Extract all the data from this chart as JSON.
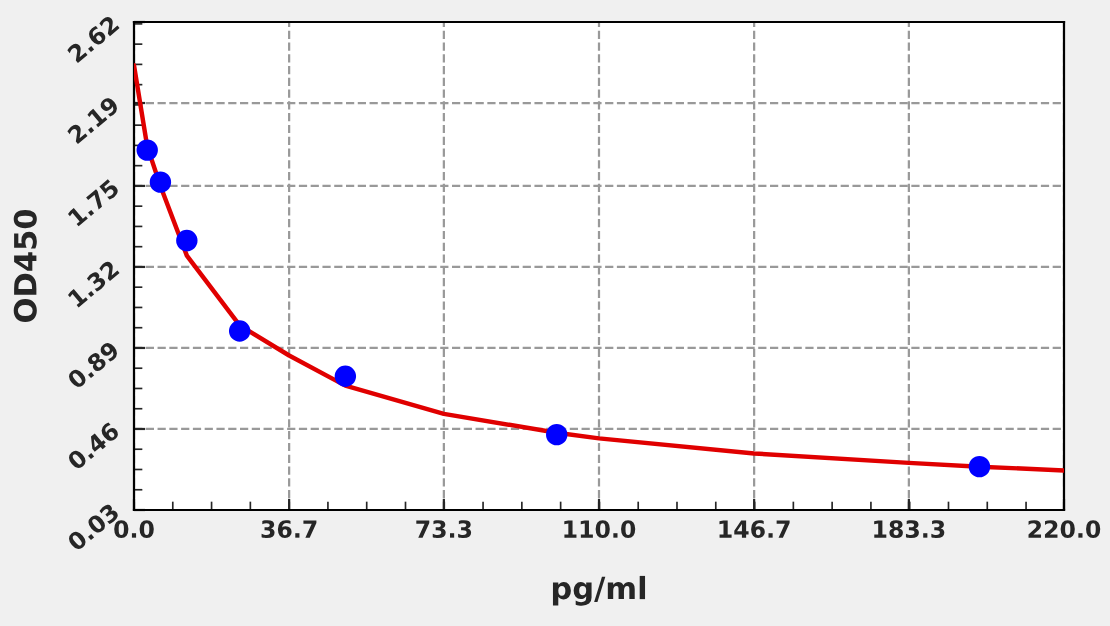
{
  "chart_data": {
    "type": "scatter",
    "xlabel": "pg/ml",
    "ylabel": "OD450",
    "xlim": [
      0,
      220
    ],
    "ylim": [
      0.03,
      2.62
    ],
    "xticks": [
      {
        "value": 0,
        "label": "0.0"
      },
      {
        "value": 36.7,
        "label": "36.7"
      },
      {
        "value": 73.3,
        "label": "73.3"
      },
      {
        "value": 110,
        "label": "110.0"
      },
      {
        "value": 146.7,
        "label": "146.7"
      },
      {
        "value": 183.3,
        "label": "183.3"
      },
      {
        "value": 220,
        "label": "220.0"
      }
    ],
    "yticks": [
      0.03,
      0.46,
      0.89,
      1.32,
      1.75,
      2.19,
      2.62
    ],
    "grid": true,
    "marker": "circle",
    "series": [
      {
        "color": "#0000ff",
        "x": [
          3.125,
          6.25,
          12.5,
          25,
          50,
          100,
          200
        ],
        "values": [
          1.94,
          1.77,
          1.46,
          0.98,
          0.74,
          0.43,
          0.26
        ]
      },
      {
        "type": "line",
        "color": "#e00000",
        "line_style": "solid",
        "marker": "none",
        "x": [
          0,
          3.125,
          6.25,
          12.5,
          25,
          36.7,
          50,
          73.3,
          100,
          110,
          146.7,
          183.3,
          200,
          220
        ],
        "values": [
          2.39,
          1.96,
          1.75,
          1.38,
          1.01,
          0.85,
          0.69,
          0.54,
          0.44,
          0.41,
          0.33,
          0.28,
          0.26,
          0.24
        ]
      }
    ]
  }
}
